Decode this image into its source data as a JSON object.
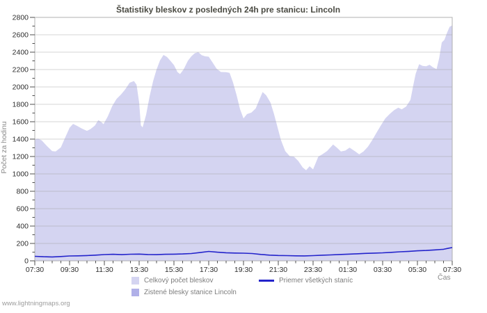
{
  "page": {
    "watermark": "www.lightningmaps.org"
  },
  "colors": {
    "background": "#ffffff",
    "title_text": "#4a4a42",
    "axis_text": "#2e2e2e",
    "muted_text": "#8a8a8a",
    "legend_text": "#7d7d7d",
    "frame": "#b0b0b0",
    "gridline": "#9b9b9b",
    "tick": "#4d4d4d",
    "area_total": "#d4d4f1",
    "area_lincoln": "#b0b0e8",
    "avg_line": "#2323cb"
  },
  "chart_data": {
    "type": "area",
    "title": "Štatistiky bleskov z posledných 24h pre stanicu: Lincoln",
    "ylabel": "Počet za hodinu",
    "xlabel": "Čas",
    "ylim": [
      0,
      2800
    ],
    "y_tick_step": 200,
    "y_minor_step": 100,
    "y_tick_labels": [
      "0",
      "200",
      "400",
      "600",
      "800",
      "1000",
      "1200",
      "1400",
      "1600",
      "1800",
      "2000",
      "2200",
      "2400",
      "2600",
      "2800"
    ],
    "hours_span": 24,
    "x_tick_step_hours": 2,
    "x_minor_step_hours": 0.5,
    "x_ticks": [
      "07:30",
      "09:30",
      "11:30",
      "13:30",
      "15:30",
      "17:30",
      "19:30",
      "21:30",
      "23:30",
      "01:30",
      "03:30",
      "05:30",
      "07:30"
    ],
    "grid": "horizontal-major-only",
    "legend_position": "bottom",
    "series": [
      {
        "name": "Celkový počet bleskov",
        "type": "area",
        "color": "#d4d4f1",
        "points": [
          [
            0,
            1400
          ],
          [
            0.2,
            1405
          ],
          [
            0.4,
            1385
          ],
          [
            0.7,
            1320
          ],
          [
            1.0,
            1262
          ],
          [
            1.2,
            1258
          ],
          [
            1.5,
            1305
          ],
          [
            1.75,
            1420
          ],
          [
            2.0,
            1530
          ],
          [
            2.2,
            1575
          ],
          [
            2.45,
            1550
          ],
          [
            2.7,
            1522
          ],
          [
            3.0,
            1495
          ],
          [
            3.2,
            1515
          ],
          [
            3.45,
            1555
          ],
          [
            3.65,
            1618
          ],
          [
            3.8,
            1600
          ],
          [
            3.95,
            1572
          ],
          [
            4.2,
            1662
          ],
          [
            4.45,
            1780
          ],
          [
            4.7,
            1862
          ],
          [
            4.95,
            1912
          ],
          [
            5.2,
            1972
          ],
          [
            5.45,
            2048
          ],
          [
            5.7,
            2068
          ],
          [
            5.85,
            2025
          ],
          [
            6.0,
            1820
          ],
          [
            6.1,
            1558
          ],
          [
            6.2,
            1535
          ],
          [
            6.4,
            1680
          ],
          [
            6.6,
            1890
          ],
          [
            6.8,
            2065
          ],
          [
            7.0,
            2200
          ],
          [
            7.2,
            2305
          ],
          [
            7.4,
            2368
          ],
          [
            7.6,
            2345
          ],
          [
            7.8,
            2300
          ],
          [
            8.0,
            2252
          ],
          [
            8.2,
            2172
          ],
          [
            8.35,
            2148
          ],
          [
            8.55,
            2200
          ],
          [
            8.8,
            2300
          ],
          [
            9.0,
            2352
          ],
          [
            9.2,
            2388
          ],
          [
            9.4,
            2400
          ],
          [
            9.6,
            2365
          ],
          [
            9.8,
            2352
          ],
          [
            10.0,
            2348
          ],
          [
            10.2,
            2288
          ],
          [
            10.45,
            2210
          ],
          [
            10.7,
            2172
          ],
          [
            11.0,
            2170
          ],
          [
            11.2,
            2162
          ],
          [
            11.4,
            2050
          ],
          [
            11.6,
            1908
          ],
          [
            11.8,
            1745
          ],
          [
            12.0,
            1638
          ],
          [
            12.2,
            1688
          ],
          [
            12.45,
            1705
          ],
          [
            12.7,
            1752
          ],
          [
            12.9,
            1848
          ],
          [
            13.1,
            1942
          ],
          [
            13.3,
            1905
          ],
          [
            13.55,
            1820
          ],
          [
            13.75,
            1690
          ],
          [
            13.95,
            1540
          ],
          [
            14.15,
            1390
          ],
          [
            14.4,
            1262
          ],
          [
            14.65,
            1205
          ],
          [
            14.9,
            1198
          ],
          [
            15.15,
            1148
          ],
          [
            15.4,
            1075
          ],
          [
            15.6,
            1042
          ],
          [
            15.8,
            1088
          ],
          [
            16.0,
            1052
          ],
          [
            16.15,
            1125
          ],
          [
            16.3,
            1198
          ],
          [
            16.55,
            1228
          ],
          [
            16.8,
            1262
          ],
          [
            17.0,
            1305
          ],
          [
            17.15,
            1338
          ],
          [
            17.35,
            1305
          ],
          [
            17.6,
            1258
          ],
          [
            17.85,
            1268
          ],
          [
            18.1,
            1302
          ],
          [
            18.4,
            1262
          ],
          [
            18.65,
            1225
          ],
          [
            18.9,
            1258
          ],
          [
            19.15,
            1312
          ],
          [
            19.4,
            1388
          ],
          [
            19.65,
            1475
          ],
          [
            19.9,
            1558
          ],
          [
            20.15,
            1638
          ],
          [
            20.4,
            1688
          ],
          [
            20.65,
            1732
          ],
          [
            20.9,
            1762
          ],
          [
            21.1,
            1742
          ],
          [
            21.35,
            1775
          ],
          [
            21.6,
            1852
          ],
          [
            21.75,
            2010
          ],
          [
            21.9,
            2152
          ],
          [
            22.1,
            2262
          ],
          [
            22.3,
            2242
          ],
          [
            22.5,
            2238
          ],
          [
            22.7,
            2255
          ],
          [
            22.9,
            2225
          ],
          [
            23.1,
            2205
          ],
          [
            23.25,
            2332
          ],
          [
            23.4,
            2512
          ],
          [
            23.55,
            2542
          ],
          [
            23.7,
            2622
          ],
          [
            23.85,
            2692
          ],
          [
            24,
            2708
          ]
        ]
      },
      {
        "name": "Zistené blesky stanice Lincoln",
        "type": "area",
        "color": "#b0b0e8",
        "points": [
          [
            0,
            0
          ],
          [
            24,
            0
          ]
        ]
      },
      {
        "name": "Priemer všetkých staníc",
        "type": "line",
        "color": "#2323cb",
        "points": [
          [
            0,
            52
          ],
          [
            0.5,
            47
          ],
          [
            1,
            45
          ],
          [
            1.5,
            50
          ],
          [
            2,
            56
          ],
          [
            2.5,
            58
          ],
          [
            3,
            61
          ],
          [
            3.5,
            66
          ],
          [
            4,
            72
          ],
          [
            4.5,
            75
          ],
          [
            5,
            71
          ],
          [
            5.5,
            76
          ],
          [
            6,
            78
          ],
          [
            6.5,
            73
          ],
          [
            7,
            71
          ],
          [
            7.5,
            75
          ],
          [
            8,
            77
          ],
          [
            8.5,
            79
          ],
          [
            9,
            84
          ],
          [
            9.5,
            95
          ],
          [
            10,
            108
          ],
          [
            10.5,
            99
          ],
          [
            11,
            93
          ],
          [
            11.5,
            90
          ],
          [
            12,
            88
          ],
          [
            12.5,
            84
          ],
          [
            13,
            74
          ],
          [
            13.5,
            66
          ],
          [
            14,
            62
          ],
          [
            14.5,
            60
          ],
          [
            15,
            58
          ],
          [
            15.5,
            57
          ],
          [
            16,
            60
          ],
          [
            16.5,
            65
          ],
          [
            17,
            68
          ],
          [
            17.5,
            73
          ],
          [
            18,
            77
          ],
          [
            18.5,
            81
          ],
          [
            19,
            86
          ],
          [
            19.5,
            89
          ],
          [
            20,
            92
          ],
          [
            20.5,
            98
          ],
          [
            21,
            104
          ],
          [
            21.5,
            109
          ],
          [
            22,
            115
          ],
          [
            22.5,
            119
          ],
          [
            23,
            126
          ],
          [
            23.5,
            133
          ],
          [
            23.8,
            146
          ],
          [
            24,
            153
          ]
        ]
      }
    ]
  }
}
